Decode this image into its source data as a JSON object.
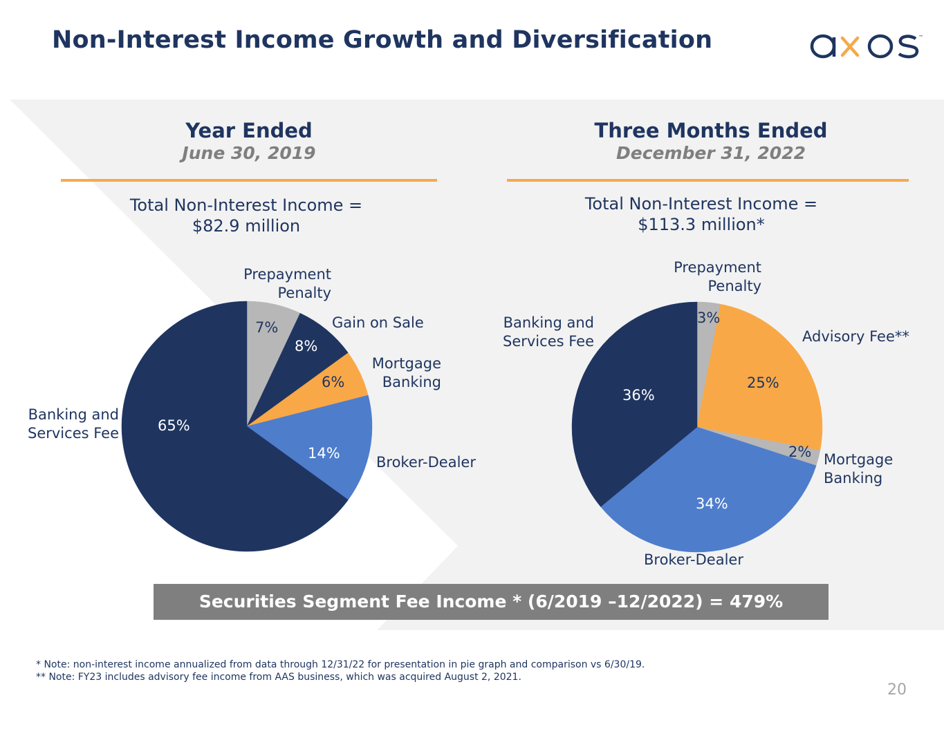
{
  "header": {
    "title": "Non-Interest Income Growth and Diversification",
    "logo_text": "axos",
    "logo_tm": "™"
  },
  "colors": {
    "navy": "#1f3560",
    "gray": "#b7b7b7",
    "orange": "#f9a847",
    "blue": "#4e7dcc",
    "accent_rule": "#f5a94c",
    "banner": "#7f7f7f"
  },
  "left_panel": {
    "heading": "Year Ended",
    "subheading": "June 30, 2019",
    "total_line1": "Total Non-Interest Income =",
    "total_line2": "$82.9 million"
  },
  "right_panel": {
    "heading": "Three Months Ended",
    "subheading": "December 31, 2022",
    "total_line1": "Total Non-Interest Income =",
    "total_line2": "$113.3 million*"
  },
  "chart_data": [
    {
      "type": "pie",
      "title": "Year Ended June 30, 2019",
      "categories": [
        "Prepayment Penalty",
        "Gain on Sale",
        "Mortgage Banking",
        "Broker-Dealer",
        "Banking and Services Fee"
      ],
      "values": [
        7,
        8,
        6,
        14,
        65
      ],
      "value_labels": [
        "7%",
        "8%",
        "6%",
        "14%",
        "65%"
      ],
      "label_lines": [
        [
          "Prepayment",
          "Penalty"
        ],
        [
          "Gain on Sale"
        ],
        [
          "Mortgage",
          "Banking"
        ],
        [
          "Broker-Dealer"
        ],
        [
          "Banking and",
          "Services Fee"
        ]
      ],
      "slice_colors": [
        "#b7b7b7",
        "#1f3560",
        "#f9a847",
        "#4e7dcc",
        "#1f3560"
      ]
    },
    {
      "type": "pie",
      "title": "Three Months Ended December 31, 2022",
      "categories": [
        "Prepayment Penalty",
        "Advisory Fee**",
        "Mortgage Banking",
        "Broker-Dealer",
        "Banking and Services Fee"
      ],
      "values": [
        3,
        25,
        2,
        34,
        36
      ],
      "value_labels": [
        "3%",
        "25%",
        "2%",
        "34%",
        "36%"
      ],
      "label_lines": [
        [
          "Prepayment",
          "Penalty"
        ],
        [
          "Advisory Fee**"
        ],
        [
          "Mortgage",
          "Banking"
        ],
        [
          "Broker-Dealer"
        ],
        [
          "Banking and",
          "Services Fee"
        ]
      ],
      "slice_colors": [
        "#b7b7b7",
        "#f9a847",
        "#b7b7b7",
        "#4e7dcc",
        "#1f3560"
      ]
    }
  ],
  "banner": {
    "text": "Securities Segment Fee Income * (6/2019 –12/2022) = 479%"
  },
  "notes": [
    "* Note: non-interest income annualized from data through 12/31/22 for presentation in pie graph and comparison vs 6/30/19.",
    "** Note: FY23 includes advisory fee income from AAS business, which was acquired August 2, 2021."
  ],
  "page_number": "20"
}
